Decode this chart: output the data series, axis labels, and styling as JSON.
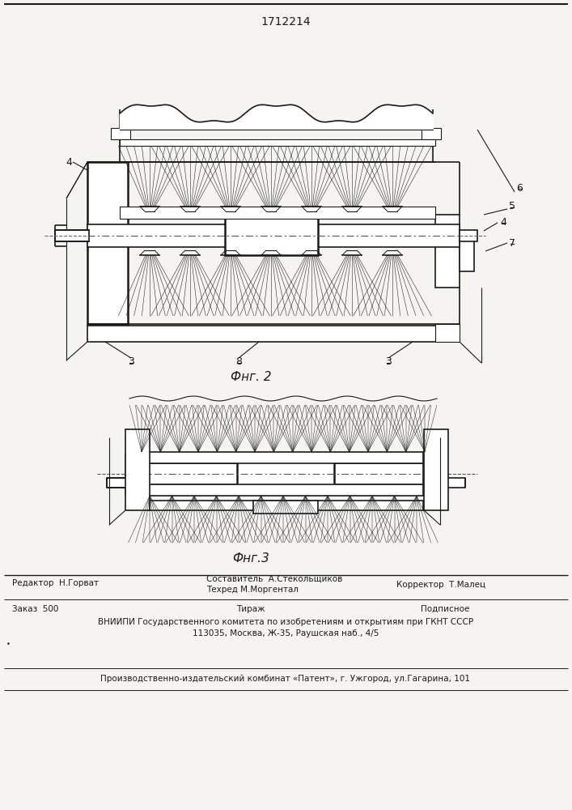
{
  "patent_number": "1712214",
  "fig2_caption": "Фнг. 2",
  "fig3_caption": "Фнг.3",
  "bg_color": "#f5f4f1",
  "line_color": "#1a1a1a",
  "footer": {
    "line1_left": "Редактор  Н.Горват",
    "line1_mid1": "Составитель  А.Стекольщиков",
    "line1_mid2": "Техред М.Моргентал",
    "line1_right": "Корректор  Т.Малец",
    "line2_left": "Заказ  500",
    "line2_mid": "Тираж",
    "line2_right": "Подписное",
    "line3": "ВНИИПИ Государственного комитета по изобретениям и открытиям при ГКНТ СССР",
    "line4": "113035, Москва, Ж-35, Раушская наб., 4/5",
    "line5": "Производственно-издательский комбинат «Патент», г. Ужгород, ул.Гагарина, 101"
  }
}
